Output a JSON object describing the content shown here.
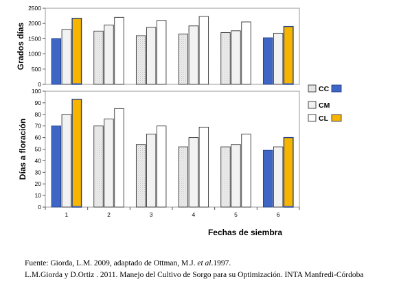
{
  "chart_data": [
    {
      "type": "bar",
      "ylabel": "Grados días",
      "ylim": [
        0,
        2500
      ],
      "yticks": [
        0,
        500,
        1000,
        1500,
        2000,
        2500
      ],
      "categories": [
        "1",
        "2",
        "3",
        "4",
        "5",
        "6"
      ],
      "series": [
        {
          "name": "CC",
          "values": [
            1500,
            1750,
            1600,
            1650,
            1700,
            1530
          ]
        },
        {
          "name": "CM",
          "values": [
            1800,
            1950,
            1870,
            1920,
            1760,
            1680
          ]
        },
        {
          "name": "CL",
          "values": [
            2170,
            2200,
            2100,
            2230,
            2050,
            1900
          ]
        }
      ],
      "highlight_categories": [
        "1",
        "6"
      ]
    },
    {
      "type": "bar",
      "ylabel": "Días a floración",
      "xlabel": "Fechas de siembra",
      "ylim": [
        0,
        100
      ],
      "yticks": [
        0,
        10,
        20,
        30,
        40,
        50,
        60,
        70,
        80,
        90,
        100
      ],
      "categories": [
        "1",
        "2",
        "3",
        "4",
        "5",
        "6"
      ],
      "series": [
        {
          "name": "CC",
          "values": [
            70,
            70,
            54,
            52,
            52,
            49
          ]
        },
        {
          "name": "CM",
          "values": [
            80,
            76,
            63,
            60,
            54,
            52
          ]
        },
        {
          "name": "CL",
          "values": [
            93,
            85,
            70,
            69,
            63,
            60
          ]
        }
      ],
      "highlight_categories": [
        "1",
        "6"
      ]
    }
  ],
  "legend": [
    {
      "label": "CC",
      "highlight_color": "#3f66c4"
    },
    {
      "label": "CM",
      "highlight_color": ""
    },
    {
      "label": "CL",
      "highlight_color": "#f7b500"
    }
  ],
  "colors": {
    "cc_highlight": "#3f66c4",
    "cl_highlight": "#f7b500",
    "cc_plain": "#e6e6e6",
    "cm_plain": "#f2f2f2",
    "cl_plain": "#ffffff",
    "frame": "#9a9a9a"
  },
  "source": {
    "line1_prefix": "Fuente: Giorda, L.M. 2009, adaptado de Ottman, M.J. ",
    "line1_italic": "et al",
    "line1_suffix": ".1997.",
    "line2": "L.M.Giorda y D.Ortiz . 2011. Manejo del Cultivo de Sorgo para su Optimización. INTA Manfredi-Córdoba"
  }
}
